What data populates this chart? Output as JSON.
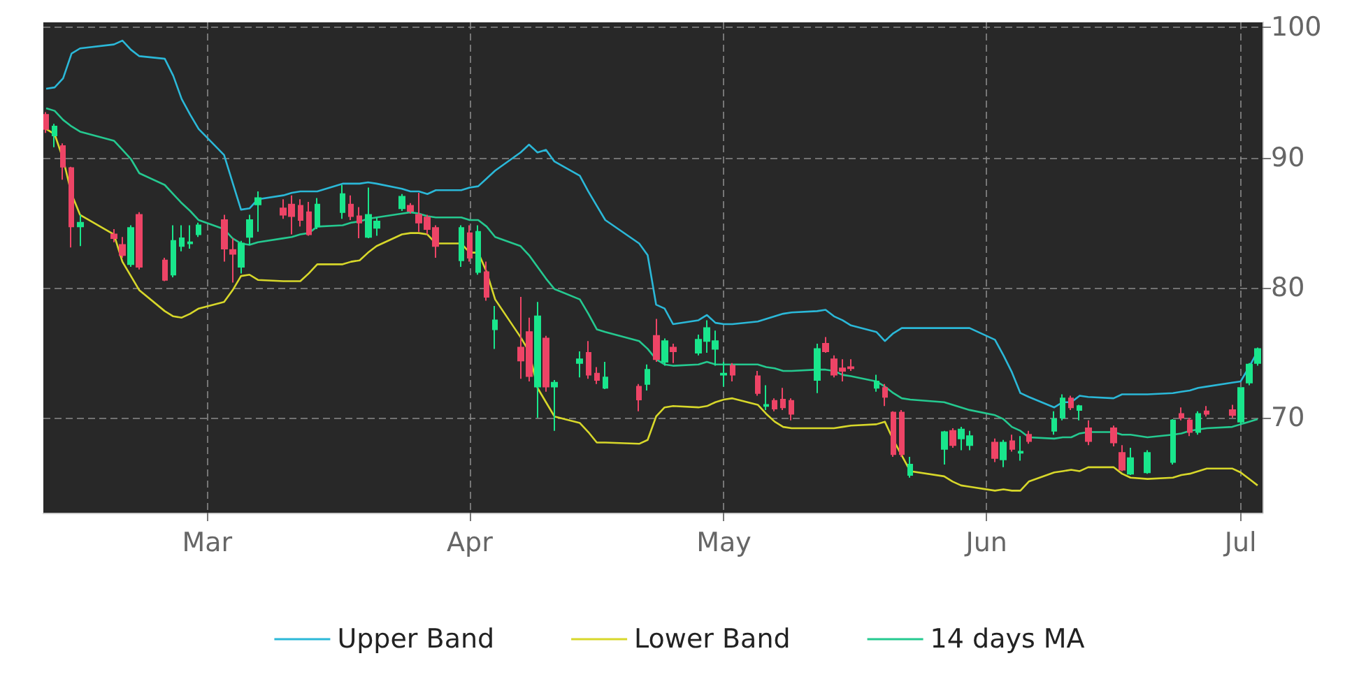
{
  "chart_data": {
    "type": "candlestick",
    "x": [
      "--02-10",
      "--02-11",
      "--02-12",
      "--02-13",
      "--02-14",
      "--02-18",
      "--02-19",
      "--02-20",
      "--02-21",
      "--02-24",
      "--02-25",
      "--02-26",
      "--02-27",
      "--02-28",
      "--03-03",
      "--03-04",
      "--03-05",
      "--03-06",
      "--03-07",
      "--03-10",
      "--03-11",
      "--03-12",
      "--03-13",
      "--03-14",
      "--03-17",
      "--03-18",
      "--03-19",
      "--03-20",
      "--03-21",
      "--03-24",
      "--03-25",
      "--03-26",
      "--03-27",
      "--03-28",
      "--03-31",
      "--04-01",
      "--04-02",
      "--04-03",
      "--04-04",
      "--04-07",
      "--04-08",
      "--04-09",
      "--04-10",
      "--04-11",
      "--04-14",
      "--04-15",
      "--04-16",
      "--04-17",
      "--04-21",
      "--04-22",
      "--04-23",
      "--04-24",
      "--04-25",
      "--04-28",
      "--04-29",
      "--04-30",
      "--05-01",
      "--05-02",
      "--05-05",
      "--05-06",
      "--05-07",
      "--05-08",
      "--05-09",
      "--05-12",
      "--05-13",
      "--05-14",
      "--05-15",
      "--05-16",
      "--05-19",
      "--05-20",
      "--05-21",
      "--05-22",
      "--05-23",
      "--05-27",
      "--05-28",
      "--05-29",
      "--05-30",
      "--06-02",
      "--06-03",
      "--06-04",
      "--06-05",
      "--06-06",
      "--06-09",
      "--06-10",
      "--06-11",
      "--06-12",
      "--06-13",
      "--06-16",
      "--06-17",
      "--06-18",
      "--06-20",
      "--06-23",
      "--06-24",
      "--06-25",
      "--06-26",
      "--06-27",
      "--06-30",
      "--07-01",
      "--07-02",
      "--07-03"
    ],
    "ohlc": [
      [
        93.3,
        93.5,
        91.9,
        92.2
      ],
      [
        91.7,
        92.6,
        90.8,
        92.4
      ],
      [
        90.9,
        91.1,
        88.3,
        89.3
      ],
      [
        89.2,
        89.3,
        83.1,
        84.7
      ],
      [
        84.7,
        85.6,
        83.2,
        85.0
      ],
      [
        84.1,
        84.5,
        83.5,
        83.8
      ],
      [
        83.3,
        83.9,
        82.3,
        82.5
      ],
      [
        81.8,
        84.8,
        81.6,
        84.6
      ],
      [
        85.6,
        85.8,
        81.4,
        81.6
      ],
      [
        82.1,
        82.3,
        80.5,
        80.6
      ],
      [
        81.0,
        84.8,
        80.8,
        83.6
      ],
      [
        83.2,
        84.8,
        82.8,
        83.8
      ],
      [
        83.4,
        84.8,
        83.0,
        83.5
      ],
      [
        84.1,
        85.0,
        83.9,
        84.8
      ],
      [
        85.2,
        85.6,
        82.0,
        83.0
      ],
      [
        82.9,
        83.8,
        80.4,
        82.6
      ],
      [
        81.6,
        83.6,
        81.1,
        83.4
      ],
      [
        83.9,
        85.6,
        83.3,
        85.2
      ],
      [
        86.4,
        87.4,
        84.3,
        86.9
      ],
      [
        86.1,
        86.8,
        85.3,
        85.6
      ],
      [
        86.4,
        87.1,
        84.1,
        85.5
      ],
      [
        86.3,
        86.8,
        84.7,
        85.2
      ],
      [
        85.8,
        86.6,
        84.0,
        84.1
      ],
      [
        84.7,
        86.9,
        84.5,
        86.4
      ],
      [
        85.8,
        87.9,
        85.3,
        87.2
      ],
      [
        86.4,
        87.1,
        85.2,
        85.5
      ],
      [
        85.5,
        86.2,
        83.8,
        85.0
      ],
      [
        83.9,
        87.7,
        83.8,
        85.6
      ],
      [
        84.6,
        85.4,
        84.0,
        85.1
      ],
      [
        86.1,
        87.2,
        85.9,
        87.0
      ],
      [
        86.3,
        86.5,
        85.7,
        85.9
      ],
      [
        85.6,
        87.3,
        84.3,
        85.0
      ],
      [
        85.4,
        85.6,
        84.1,
        84.5
      ],
      [
        84.6,
        84.8,
        82.3,
        83.2
      ],
      [
        82.1,
        84.8,
        81.6,
        84.6
      ],
      [
        84.2,
        84.8,
        82.0,
        82.3
      ],
      [
        81.2,
        84.8,
        81.0,
        84.3
      ],
      [
        81.2,
        82.0,
        79.0,
        79.3
      ],
      [
        76.8,
        78.6,
        75.3,
        77.5
      ],
      [
        75.4,
        79.3,
        73.0,
        74.4
      ],
      [
        76.6,
        77.7,
        72.8,
        73.2
      ],
      [
        72.4,
        78.9,
        70.0,
        77.8
      ],
      [
        76.1,
        76.3,
        72.0,
        72.4
      ],
      [
        72.4,
        72.9,
        69.0,
        72.7
      ],
      [
        74.2,
        75.1,
        73.1,
        74.5
      ],
      [
        75.0,
        75.9,
        73.0,
        73.3
      ],
      [
        73.4,
        73.9,
        72.6,
        72.9
      ],
      [
        72.3,
        74.3,
        72.2,
        73.1
      ],
      [
        72.4,
        72.6,
        70.5,
        71.4
      ],
      [
        72.6,
        74.1,
        72.1,
        73.7
      ],
      [
        76.3,
        77.6,
        74.3,
        74.5
      ],
      [
        74.3,
        76.1,
        74.0,
        75.9
      ],
      [
        75.4,
        75.7,
        74.2,
        75.1
      ],
      [
        75.0,
        76.4,
        74.8,
        76.0
      ],
      [
        75.9,
        77.5,
        75.0,
        76.9
      ],
      [
        75.3,
        76.7,
        74.0,
        75.9
      ],
      [
        73.3,
        74.3,
        72.4,
        73.4
      ],
      [
        74.0,
        74.2,
        72.8,
        73.3
      ],
      [
        73.2,
        73.6,
        71.7,
        71.9
      ],
      [
        70.9,
        72.5,
        70.6,
        71.0
      ],
      [
        71.3,
        71.5,
        70.5,
        70.7
      ],
      [
        71.4,
        72.3,
        70.6,
        70.8
      ],
      [
        71.3,
        71.5,
        69.8,
        70.3
      ],
      [
        72.9,
        75.7,
        71.9,
        75.3
      ],
      [
        75.7,
        76.2,
        75.0,
        75.1
      ],
      [
        74.5,
        74.8,
        73.1,
        73.3
      ],
      [
        73.8,
        74.5,
        72.8,
        73.6
      ],
      [
        73.9,
        74.5,
        73.6,
        73.8
      ],
      [
        72.3,
        73.3,
        72.0,
        72.8
      ],
      [
        72.3,
        72.6,
        70.9,
        71.6
      ],
      [
        70.4,
        70.5,
        67.0,
        67.2
      ],
      [
        70.4,
        70.6,
        67.0,
        67.2
      ],
      [
        65.6,
        67.0,
        65.4,
        66.4
      ],
      [
        67.6,
        69.0,
        66.4,
        68.9
      ],
      [
        69.0,
        69.2,
        67.7,
        67.9
      ],
      [
        68.4,
        69.3,
        67.5,
        69.1
      ],
      [
        67.9,
        69.0,
        67.5,
        68.6
      ],
      [
        68.1,
        68.4,
        66.6,
        66.9
      ],
      [
        66.8,
        68.3,
        66.2,
        68.1
      ],
      [
        68.2,
        68.7,
        67.4,
        67.6
      ],
      [
        67.3,
        68.6,
        66.7,
        67.4
      ],
      [
        68.7,
        69.0,
        68.0,
        68.2
      ],
      [
        69.0,
        70.5,
        68.7,
        69.9
      ],
      [
        70.0,
        71.8,
        69.8,
        71.5
      ],
      [
        71.5,
        71.7,
        70.6,
        70.8
      ],
      [
        70.6,
        71.0,
        69.8,
        70.9
      ],
      [
        69.2,
        69.8,
        67.9,
        68.2
      ],
      [
        69.2,
        69.4,
        67.8,
        68.1
      ],
      [
        67.3,
        67.9,
        65.9,
        66.0
      ],
      [
        65.7,
        67.7,
        65.6,
        66.9
      ],
      [
        65.8,
        67.5,
        65.7,
        67.3
      ],
      [
        66.6,
        69.9,
        66.4,
        69.8
      ],
      [
        70.3,
        70.8,
        69.8,
        70.0
      ],
      [
        69.8,
        70.0,
        68.6,
        68.9
      ],
      [
        68.9,
        70.5,
        68.7,
        70.3
      ],
      [
        70.5,
        70.9,
        70.1,
        70.3
      ],
      [
        70.6,
        71.0,
        70.0,
        70.2
      ],
      [
        69.7,
        72.3,
        69.5,
        72.3
      ],
      [
        72.7,
        74.2,
        72.5,
        74.1
      ],
      [
        74.2,
        75.4,
        74.0,
        75.3
      ]
    ],
    "colors": [
      "#ee4466",
      "#19e68c",
      "#ee4466",
      "#ee4466",
      "#19e68c",
      "#ee4466",
      "#ee4466",
      "#19e68c",
      "#ee4466",
      "#ee4466",
      "#19e68c",
      "#19e68c",
      "#19e68c",
      "#19e68c",
      "#ee4466",
      "#ee4466",
      "#19e68c",
      "#19e68c",
      "#19e68c",
      "#ee4466",
      "#ee4466",
      "#ee4466",
      "#ee4466",
      "#19e68c",
      "#19e68c",
      "#ee4466",
      "#ee4466",
      "#19e68c",
      "#19e68c",
      "#19e68c",
      "#ee4466",
      "#ee4466",
      "#ee4466",
      "#ee4466",
      "#19e68c",
      "#ee4466",
      "#19e68c",
      "#ee4466",
      "#19e68c",
      "#ee4466",
      "#ee4466",
      "#19e68c",
      "#ee4466",
      "#19e68c",
      "#19e68c",
      "#ee4466",
      "#ee4466",
      "#19e68c",
      "#ee4466",
      "#19e68c",
      "#ee4466",
      "#19e68c",
      "#ee4466",
      "#19e68c",
      "#19e68c",
      "#19e68c",
      "#19e68c",
      "#ee4466",
      "#ee4466",
      "#19e68c",
      "#ee4466",
      "#ee4466",
      "#ee4466",
      "#19e68c",
      "#ee4466",
      "#ee4466",
      "#ee4466",
      "#ee4466",
      "#19e68c",
      "#ee4466",
      "#ee4466",
      "#ee4466",
      "#19e68c",
      "#19e68c",
      "#ee4466",
      "#19e68c",
      "#19e68c",
      "#ee4466",
      "#19e68c",
      "#ee4466",
      "#19e68c",
      "#ee4466",
      "#19e68c",
      "#19e68c",
      "#ee4466",
      "#19e68c",
      "#ee4466",
      "#ee4466",
      "#ee4466",
      "#19e68c",
      "#19e68c",
      "#19e68c",
      "#ee4466",
      "#ee4466",
      "#19e68c",
      "#ee4466",
      "#ee4466",
      "#19e68c",
      "#19e68c",
      "#19e68c"
    ],
    "series": [
      {
        "name": "Upper Band",
        "type": "line",
        "color": "#2bb8d8",
        "values": [
          95.3,
          95.4,
          96.1,
          98.0,
          98.4,
          98.7,
          99.0,
          98.3,
          97.8,
          97.6,
          96.3,
          94.5,
          93.3,
          92.2,
          90.2,
          88.1,
          86.0,
          86.1,
          86.8,
          87.1,
          87.3,
          87.4,
          87.4,
          87.4,
          88.0,
          88.0,
          88.0,
          88.1,
          88.0,
          87.6,
          87.4,
          87.4,
          87.2,
          87.5,
          87.5,
          87.7,
          87.8,
          88.4,
          89.0,
          90.4,
          91.0,
          90.4,
          90.6,
          89.7,
          88.6,
          87.4,
          86.3,
          85.2,
          83.4,
          82.5,
          78.7,
          78.4,
          77.2,
          77.5,
          77.9,
          77.3,
          77.2,
          77.2,
          77.4,
          77.6,
          77.8,
          78.0,
          78.1,
          78.2,
          78.3,
          77.8,
          77.5,
          77.1,
          76.6,
          75.9,
          76.5,
          76.9,
          76.9,
          76.9,
          76.9,
          76.9,
          76.9,
          76.0,
          74.8,
          73.5,
          71.9,
          71.6,
          70.8,
          71.2,
          71.2,
          71.7,
          71.6,
          71.5,
          71.8,
          71.8,
          71.8,
          71.9,
          72.0,
          72.1,
          72.3,
          72.4,
          72.7,
          72.8,
          73.9,
          75.1
        ]
      },
      {
        "name": "Lower Band",
        "type": "line",
        "color": "#d7d72a",
        "values": [
          92.2,
          91.8,
          89.9,
          87.2,
          85.6,
          84.1,
          82.0,
          80.9,
          79.8,
          78.2,
          77.8,
          77.7,
          78.0,
          78.4,
          78.9,
          79.8,
          80.9,
          81.0,
          80.6,
          80.5,
          80.5,
          80.5,
          81.1,
          81.8,
          81.8,
          82.0,
          82.1,
          82.7,
          83.2,
          84.1,
          84.2,
          84.2,
          84.1,
          83.4,
          83.4,
          82.7,
          82.7,
          81.2,
          79.1,
          76.2,
          75.1,
          72.3,
          71.2,
          70.1,
          69.6,
          68.9,
          68.1,
          68.1,
          68.0,
          68.3,
          70.1,
          70.8,
          70.9,
          70.8,
          70.9,
          71.2,
          71.4,
          71.5,
          71.0,
          70.3,
          69.7,
          69.3,
          69.2,
          69.2,
          69.2,
          69.2,
          69.3,
          69.4,
          69.5,
          69.7,
          68.3,
          67.1,
          65.9,
          65.5,
          65.1,
          64.8,
          64.7,
          64.4,
          64.5,
          64.4,
          64.4,
          65.1,
          65.8,
          65.9,
          66.0,
          65.9,
          66.2,
          66.2,
          65.7,
          65.4,
          65.3,
          65.4,
          65.6,
          65.7,
          65.9,
          66.1,
          66.1,
          65.8,
          65.3,
          64.8
        ]
      },
      {
        "name": "14 days MA",
        "type": "line",
        "color": "#25c990",
        "values": [
          93.8,
          93.6,
          92.9,
          92.4,
          92.0,
          91.3,
          90.6,
          89.9,
          88.8,
          87.9,
          87.2,
          86.5,
          85.9,
          85.2,
          84.5,
          83.8,
          83.4,
          83.3,
          83.5,
          83.8,
          83.9,
          84.1,
          84.2,
          84.7,
          84.8,
          85.0,
          85.1,
          85.3,
          85.4,
          85.7,
          85.8,
          85.7,
          85.5,
          85.4,
          85.4,
          85.2,
          85.2,
          84.7,
          83.9,
          83.2,
          82.5,
          81.6,
          80.7,
          79.9,
          79.1,
          78.0,
          76.8,
          76.6,
          75.9,
          75.3,
          74.5,
          74.1,
          74.0,
          74.1,
          74.3,
          74.1,
          74.1,
          74.1,
          74.1,
          73.9,
          73.8,
          73.6,
          73.6,
          73.7,
          73.7,
          73.6,
          73.3,
          73.2,
          72.8,
          72.4,
          71.9,
          71.5,
          71.4,
          71.2,
          71.0,
          70.8,
          70.6,
          70.2,
          69.9,
          69.3,
          69.0,
          68.5,
          68.4,
          68.5,
          68.5,
          68.8,
          68.9,
          68.9,
          68.7,
          68.7,
          68.5,
          68.7,
          68.8,
          69.0,
          69.1,
          69.2,
          69.3,
          69.5,
          69.7,
          69.9
        ]
      }
    ],
    "xlim": [
      "--02-09T16:00",
      "--07-03T14:00"
    ],
    "xticks": [
      {
        "value": "--03-01",
        "label": "Mar"
      },
      {
        "value": "--04-01",
        "label": "Apr"
      },
      {
        "value": "--05-01",
        "label": "May"
      },
      {
        "value": "--06-01",
        "label": "Jun"
      },
      {
        "value": "--07-01",
        "label": "Jul"
      }
    ],
    "ylim": [
      62.7,
      100.4
    ],
    "yticks": [
      70,
      80,
      90,
      100
    ],
    "grid": true,
    "legend": "bottom"
  }
}
